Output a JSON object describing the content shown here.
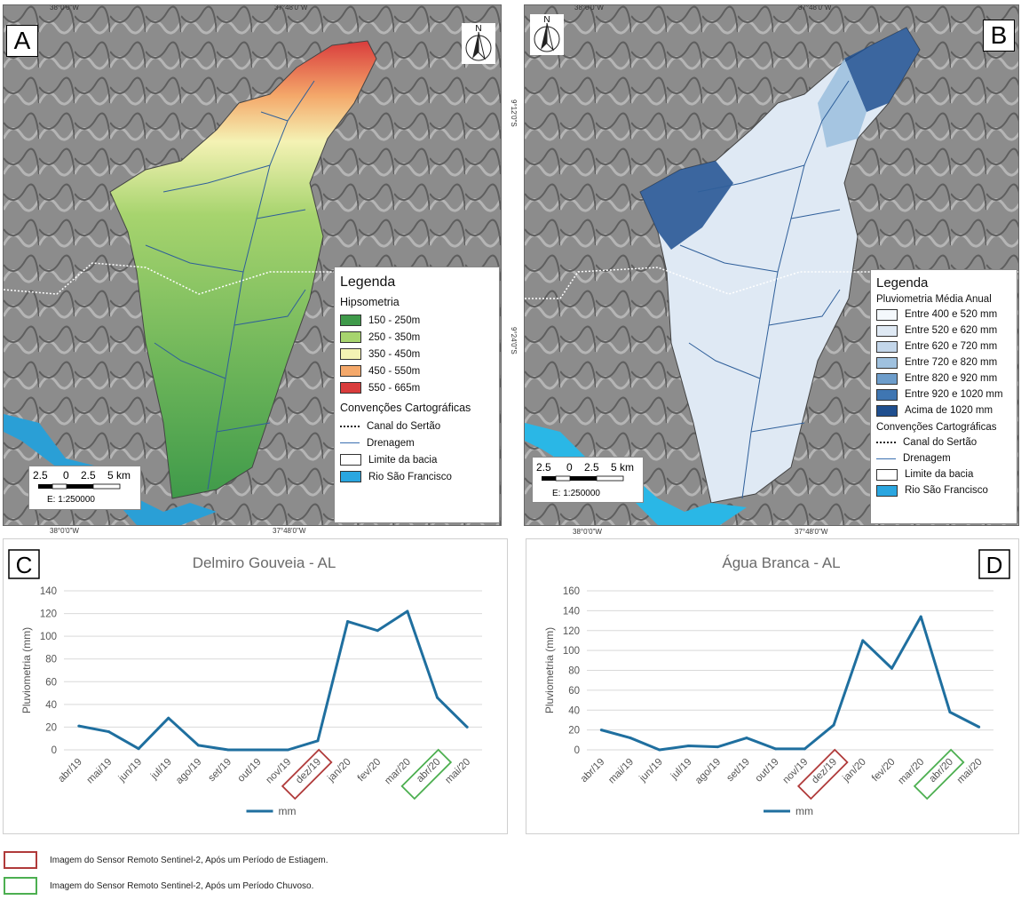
{
  "maps": {
    "a": {
      "letter": "A",
      "coord_top_left": "38°0'0\"W",
      "coord_top_right": "37°48'0\"W",
      "coord_bottom_left": "38°0'0\"W",
      "coord_bottom_right": "37°48'0\"W",
      "legend": {
        "title": "Legenda",
        "section1": "Hipsometria",
        "classes": [
          {
            "label": "150 - 250m",
            "color": "#3f9a4a"
          },
          {
            "label": "250 - 350m",
            "color": "#a7d46e"
          },
          {
            "label": "350 - 450m",
            "color": "#f4f2b4"
          },
          {
            "label": "450 - 550m",
            "color": "#f4a86a"
          },
          {
            "label": "550 - 665m",
            "color": "#d93c3c"
          }
        ],
        "section2": "Convenções Cartográficas",
        "conventions": [
          {
            "label": "Canal do Sertão",
            "kind": "dotted"
          },
          {
            "label": "Drenagem",
            "kind": "line"
          },
          {
            "label": "Limite da bacia",
            "kind": "box"
          },
          {
            "label": "Rio São Francisco",
            "kind": "fill"
          }
        ]
      },
      "scale": {
        "ticks": [
          "2.5",
          "0",
          "2.5",
          "5 km"
        ],
        "ratio": "E: 1:250000"
      }
    },
    "b": {
      "letter": "B",
      "coord_top_left": "38°0'0\"W",
      "coord_top_right": "37°48'0\"W",
      "coord_bottom_left": "38°0'0\"W",
      "coord_bottom_right": "37°48'0\"W",
      "coord_side_top": "9°12'0\"S",
      "coord_side_bottom": "9°24'0\"S",
      "legend": {
        "title": "Legenda",
        "section1": "Pluviometria Média Anual",
        "classes": [
          {
            "label": "Entre 400 e 520 mm",
            "color": "#f4f8fc"
          },
          {
            "label": "Entre 520 e 620 mm",
            "color": "#dfe9f4"
          },
          {
            "label": "Entre 620 e 720 mm",
            "color": "#c3d6ea"
          },
          {
            "label": "Entre 720 e 820 mm",
            "color": "#9fc1df"
          },
          {
            "label": "Entre 820 e 920 mm",
            "color": "#6d9dcb"
          },
          {
            "label": "Entre 920 e 1020 mm",
            "color": "#3f76b2"
          },
          {
            "label": "Acima de 1020 mm",
            "color": "#1f4f8f"
          }
        ],
        "section2": "Convenções Cartográficas",
        "conventions": [
          {
            "label": "Canal do Sertão",
            "kind": "dotted"
          },
          {
            "label": "Drenagem",
            "kind": "line"
          },
          {
            "label": "Limite da bacia",
            "kind": "box"
          },
          {
            "label": "Rio São Francisco",
            "kind": "fill"
          }
        ]
      },
      "scale": {
        "ticks": [
          "2.5",
          "0",
          "2.5",
          "5 km"
        ],
        "ratio": "E: 1:250000"
      }
    },
    "north_label": "N"
  },
  "chart_data": [
    {
      "type": "line",
      "letter": "C",
      "title": "Delmiro Gouveia - AL",
      "ylabel": "Pluviometria (mm)",
      "legend": "mm",
      "ylim": [
        0,
        140
      ],
      "yticks": [
        0,
        20,
        40,
        60,
        80,
        100,
        120,
        140
      ],
      "categories": [
        "abr/19",
        "mai/19",
        "jun/19",
        "jul/19",
        "ago/19",
        "set/19",
        "out/19",
        "nov/19",
        "dez/19",
        "jan/20",
        "fev/20",
        "mar/20",
        "abr/20",
        "mai/20"
      ],
      "values": [
        21,
        16,
        1,
        28,
        4,
        0,
        0,
        0,
        8,
        113,
        105,
        122,
        46,
        20
      ],
      "highlight_red": "dez/19",
      "highlight_green": "abr/20",
      "line_color": "#1f6f9f"
    },
    {
      "type": "line",
      "letter": "D",
      "title": "Água Branca - AL",
      "ylabel": "Pluviometria (mm)",
      "legend": "mm",
      "ylim": [
        0,
        160
      ],
      "yticks": [
        0,
        20,
        40,
        60,
        80,
        100,
        120,
        140,
        160
      ],
      "categories": [
        "abr/19",
        "mai/19",
        "jun/19",
        "jul/19",
        "ago/19",
        "set/19",
        "out/19",
        "nov/19",
        "dez/19",
        "jan/20",
        "fev/20",
        "mar/20",
        "abr/20",
        "mai/20"
      ],
      "values": [
        20,
        12,
        0,
        4,
        3,
        12,
        1,
        1,
        25,
        110,
        82,
        134,
        38,
        23
      ],
      "highlight_red": "dez/19",
      "highlight_green": "abr/20",
      "line_color": "#1f6f9f"
    }
  ],
  "notes": [
    {
      "text": "Imagem do Sensor Remoto Sentinel-2, Após um Período de Estiagem.",
      "color": "#b03a3a"
    },
    {
      "text": "Imagem do Sensor Remoto Sentinel-2, Após um Período Chuvoso.",
      "color": "#4caf50"
    }
  ]
}
